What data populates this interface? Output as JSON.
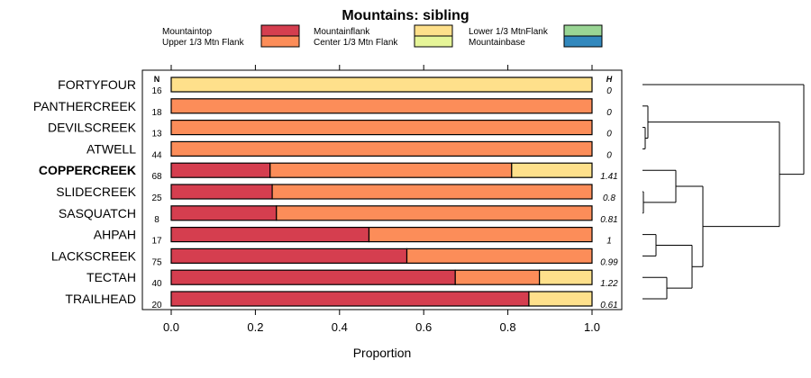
{
  "chart_data": {
    "type": "bar",
    "stacked": true,
    "orientation": "horizontal",
    "title": "Mountains: sibling",
    "xlabel": "Proportion",
    "ylabel": "",
    "xlim": [
      0,
      1
    ],
    "xticks": [
      "0.0",
      "0.2",
      "0.4",
      "0.6",
      "0.8",
      "1.0"
    ],
    "n_header": "N",
    "h_header": "H",
    "legend": [
      {
        "name": "Mountaintop",
        "color": "#D53E4F"
      },
      {
        "name": "Upper 1/3 Mtn Flank",
        "color": "#FC8D59"
      },
      {
        "name": "Mountainflank",
        "color": "#FEE08B"
      },
      {
        "name": "Center 1/3 Mtn Flank",
        "color": "#E6F598"
      },
      {
        "name": "Lower 1/3 MtnFlank",
        "color": "#99D594"
      },
      {
        "name": "Mountainbase",
        "color": "#3288BD"
      }
    ],
    "categories": [
      "FORTYFOUR",
      "PANTHERCREEK",
      "DEVILSCREEK",
      "ATWELL",
      "COPPERCREEK",
      "SLIDECREEK",
      "SASQUATCH",
      "AHPAH",
      "LACKSCREEK",
      "TECTAH",
      "TRAILHEAD"
    ],
    "highlight": "COPPERCREEK",
    "n": [
      "16",
      "18",
      "13",
      "44",
      "68",
      "25",
      "8",
      "17",
      "75",
      "40",
      "20"
    ],
    "h": [
      "0",
      "0",
      "0",
      "0",
      "1.41",
      "0.8",
      "0.81",
      "1",
      "0.99",
      "1.22",
      "0.61"
    ],
    "series": [
      {
        "name": "Mountaintop",
        "color": "#D53E4F",
        "values": [
          0,
          0,
          0,
          0,
          0.235,
          0.24,
          0.25,
          0.47,
          0.56,
          0.675,
          0.85
        ]
      },
      {
        "name": "Upper 1/3 Mtn Flank",
        "color": "#FC8D59",
        "values": [
          0,
          1,
          1,
          1,
          0.574,
          0.76,
          0.75,
          0.53,
          0.44,
          0.2,
          0
        ]
      },
      {
        "name": "Mountainflank",
        "color": "#FEE08B",
        "values": [
          1,
          0,
          0,
          0,
          0.191,
          0,
          0,
          0,
          0,
          0.125,
          0.15
        ]
      }
    ]
  }
}
